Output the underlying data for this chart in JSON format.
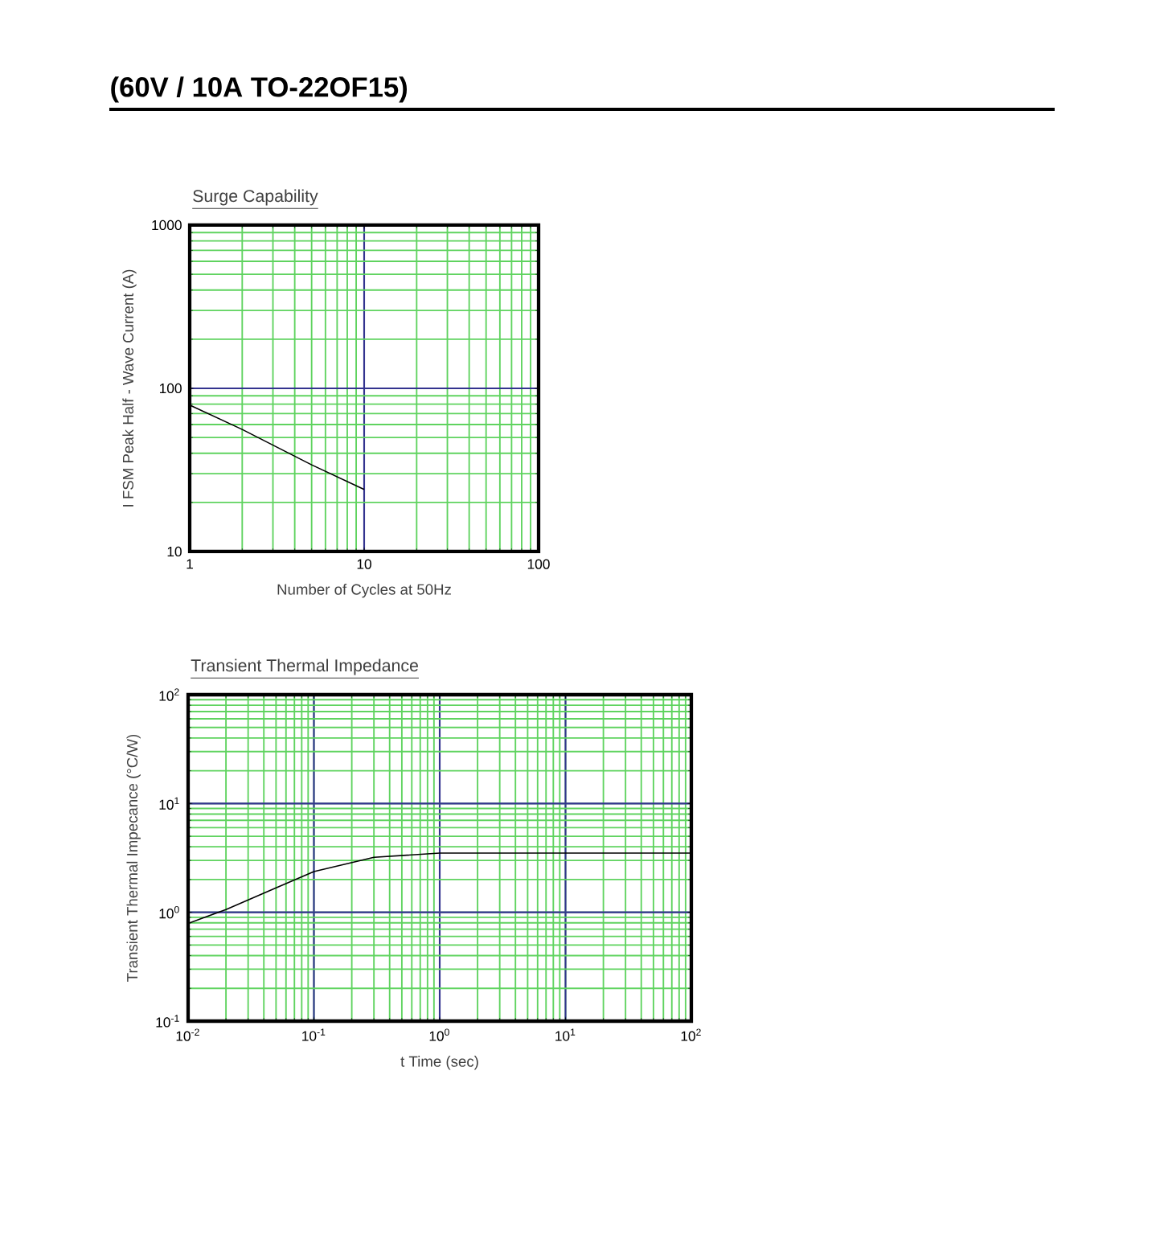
{
  "chart_data": [
    {
      "type": "line",
      "title": "Surge Capability",
      "xlabel": "Number of Cycles at 50Hz",
      "ylabel": "I FSM     Peak Half - Wave Current     (A)",
      "annotations": [
        "(60V / 10A  TO-22OF15)"
      ],
      "x": [
        1,
        2,
        5,
        10
      ],
      "values": [
        79,
        56,
        34,
        24
      ],
      "color": "#000000",
      "xlim": [
        1,
        100
      ],
      "ylim": [
        10,
        1000
      ],
      "xticks": [
        1,
        10,
        100
      ],
      "yticks": [
        10,
        100,
        1000
      ],
      "log": "xy",
      "grid": true
    },
    {
      "type": "line",
      "title": "Transient Thermal Impedance",
      "xlabel": "t      Time     (sec)",
      "ylabel": "Transient Thermal Impecance   (°C/W)",
      "x": [
        0.01,
        0.02,
        0.05,
        0.1,
        0.3,
        1,
        10,
        100
      ],
      "values": [
        0.79,
        1.06,
        1.68,
        2.37,
        3.2,
        3.5,
        3.5,
        3.5
      ],
      "color": "#000000",
      "xlim": [
        0.01,
        100
      ],
      "ylim": [
        0.1,
        100
      ],
      "xticks": [
        {
          "value": 0.01,
          "label": "10$^{-2}$"
        },
        {
          "value": 0.1,
          "label": "10$^{-1}$"
        },
        {
          "value": 1,
          "label": "10$^{0}$"
        },
        {
          "value": 10,
          "label": "10$^{1}$"
        },
        {
          "value": 100,
          "label": "10$^{2}$"
        }
      ],
      "yticks": [
        {
          "value": 0.1,
          "label": "10$^{-1}$"
        },
        {
          "value": 1,
          "label": "10$^{0}$"
        },
        {
          "value": 10,
          "label": "10$^{1}$"
        },
        {
          "value": 100,
          "label": "10$^{2}$"
        }
      ],
      "log": "xy",
      "grid": true
    }
  ]
}
